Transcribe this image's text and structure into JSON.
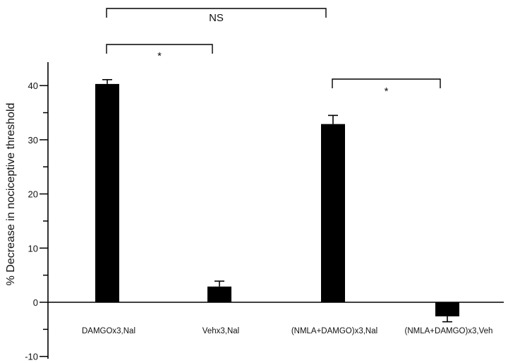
{
  "chart_data": {
    "type": "bar",
    "title": "",
    "xlabel": "",
    "ylabel": "% Decrease in nociceptive threshold",
    "ylim": [
      -10,
      40
    ],
    "yticks": [
      -10,
      0,
      10,
      20,
      30,
      40
    ],
    "grid": false,
    "legend": "none",
    "categories": [
      "DAMGOx3,Nal",
      "Vehx3,Nal",
      "(NMLA+DAMGO)x3,Nal",
      "(NMLA+DAMGO)x3,Veh"
    ],
    "values": [
      40.3,
      2.9,
      32.9,
      -2.6
    ],
    "errors": [
      0.8,
      1.0,
      1.6,
      1.0
    ],
    "bar_color": "#000000",
    "comparisons": [
      {
        "from": 0,
        "to": 1,
        "label": "*"
      },
      {
        "from": 0,
        "to": 2,
        "label": "NS"
      },
      {
        "from": 2,
        "to": 3,
        "label": "*"
      }
    ]
  }
}
